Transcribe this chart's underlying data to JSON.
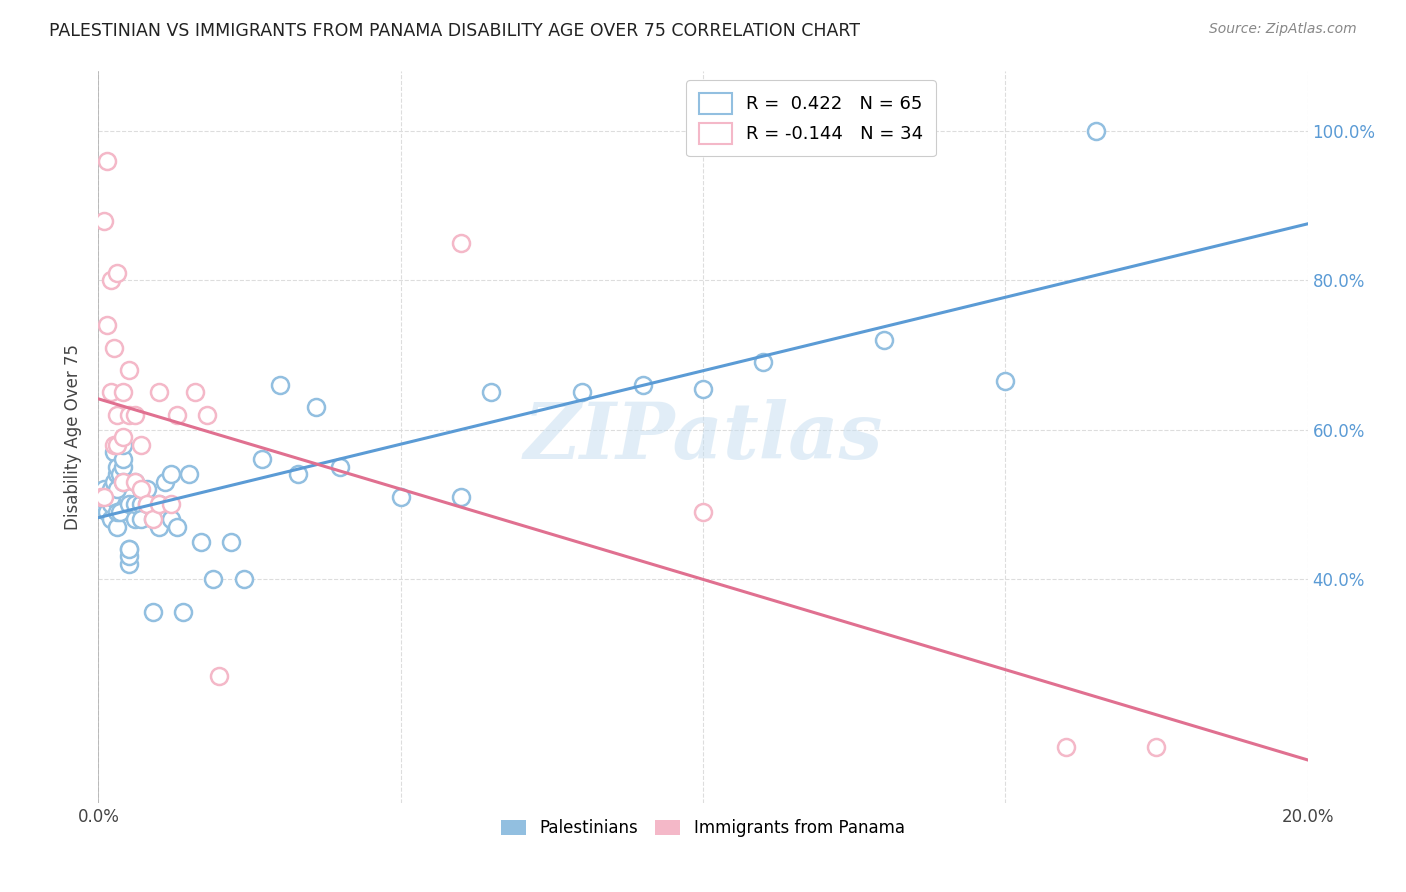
{
  "title": "PALESTINIAN VS IMMIGRANTS FROM PANAMA DISABILITY AGE OVER 75 CORRELATION CHART",
  "source": "Source: ZipAtlas.com",
  "ylabel": "Disability Age Over 75",
  "series1_label": "Palestinians",
  "series1_color": "#92bfe0",
  "series1_line_color": "#5b9bd5",
  "series1_R": "0.422",
  "series1_N": "65",
  "series2_label": "Immigrants from Panama",
  "series2_color": "#f4b8c8",
  "series2_line_color": "#e07090",
  "series2_R": "-0.144",
  "series2_N": "34",
  "background_color": "#ffffff",
  "watermark": "ZIPatlas",
  "series1_x": [
    0.0005,
    0.001,
    0.001,
    0.0015,
    0.0015,
    0.002,
    0.002,
    0.002,
    0.002,
    0.002,
    0.0025,
    0.0025,
    0.003,
    0.003,
    0.003,
    0.003,
    0.003,
    0.0035,
    0.0035,
    0.004,
    0.004,
    0.004,
    0.004,
    0.005,
    0.005,
    0.005,
    0.005,
    0.005,
    0.006,
    0.006,
    0.006,
    0.007,
    0.007,
    0.007,
    0.008,
    0.008,
    0.009,
    0.009,
    0.01,
    0.01,
    0.011,
    0.012,
    0.012,
    0.013,
    0.014,
    0.015,
    0.017,
    0.019,
    0.022,
    0.024,
    0.027,
    0.03,
    0.033,
    0.036,
    0.04,
    0.05,
    0.06,
    0.065,
    0.08,
    0.09,
    0.1,
    0.11,
    0.13,
    0.15,
    0.165
  ],
  "series1_y": [
    0.51,
    0.5,
    0.52,
    0.5,
    0.49,
    0.51,
    0.48,
    0.5,
    0.52,
    0.51,
    0.53,
    0.57,
    0.54,
    0.47,
    0.49,
    0.55,
    0.52,
    0.54,
    0.49,
    0.55,
    0.56,
    0.53,
    0.58,
    0.42,
    0.44,
    0.43,
    0.44,
    0.5,
    0.48,
    0.53,
    0.5,
    0.5,
    0.48,
    0.52,
    0.5,
    0.52,
    0.48,
    0.355,
    0.5,
    0.47,
    0.53,
    0.54,
    0.48,
    0.47,
    0.355,
    0.54,
    0.45,
    0.4,
    0.45,
    0.4,
    0.56,
    0.66,
    0.54,
    0.63,
    0.55,
    0.51,
    0.51,
    0.65,
    0.65,
    0.66,
    0.655,
    0.69,
    0.72,
    0.665,
    1.0
  ],
  "series2_x": [
    0.0005,
    0.001,
    0.001,
    0.0015,
    0.0015,
    0.002,
    0.002,
    0.0025,
    0.0025,
    0.003,
    0.003,
    0.003,
    0.004,
    0.004,
    0.004,
    0.005,
    0.005,
    0.006,
    0.006,
    0.007,
    0.007,
    0.008,
    0.009,
    0.01,
    0.01,
    0.012,
    0.013,
    0.016,
    0.018,
    0.02,
    0.06,
    0.1,
    0.16,
    0.175
  ],
  "series2_y": [
    0.51,
    0.51,
    0.88,
    0.96,
    0.74,
    0.8,
    0.65,
    0.71,
    0.58,
    0.58,
    0.62,
    0.81,
    0.65,
    0.53,
    0.59,
    0.68,
    0.62,
    0.53,
    0.62,
    0.52,
    0.58,
    0.5,
    0.48,
    0.5,
    0.65,
    0.5,
    0.62,
    0.65,
    0.62,
    0.27,
    0.85,
    0.49,
    0.175,
    0.175
  ],
  "xmin": 0.0,
  "xmax": 0.2,
  "ymin": 0.1,
  "ymax": 1.08,
  "yticks": [
    0.4,
    0.6,
    0.8,
    1.0
  ]
}
